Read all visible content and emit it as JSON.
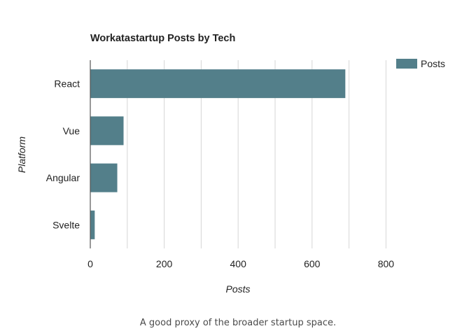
{
  "caption": "A good proxy of the broader startup space.",
  "chart_data": {
    "type": "bar",
    "orientation": "horizontal",
    "title": "Workatastartup Posts by Tech",
    "xlabel": "Posts",
    "ylabel": "Platform",
    "categories": [
      "React",
      "Vue",
      "Angular",
      "Svelte"
    ],
    "series": [
      {
        "name": "Posts",
        "values": [
          690,
          90,
          73,
          12
        ]
      }
    ],
    "xlim": [
      0,
      850
    ],
    "x_ticks": [
      0,
      200,
      400,
      600,
      800
    ],
    "grid_step": 100,
    "grid": true,
    "legend_position": "top-right",
    "colors": {
      "bar": "#537f8a",
      "grid": "#d6d6d6",
      "axis": "#555555",
      "text": "#222222"
    }
  }
}
